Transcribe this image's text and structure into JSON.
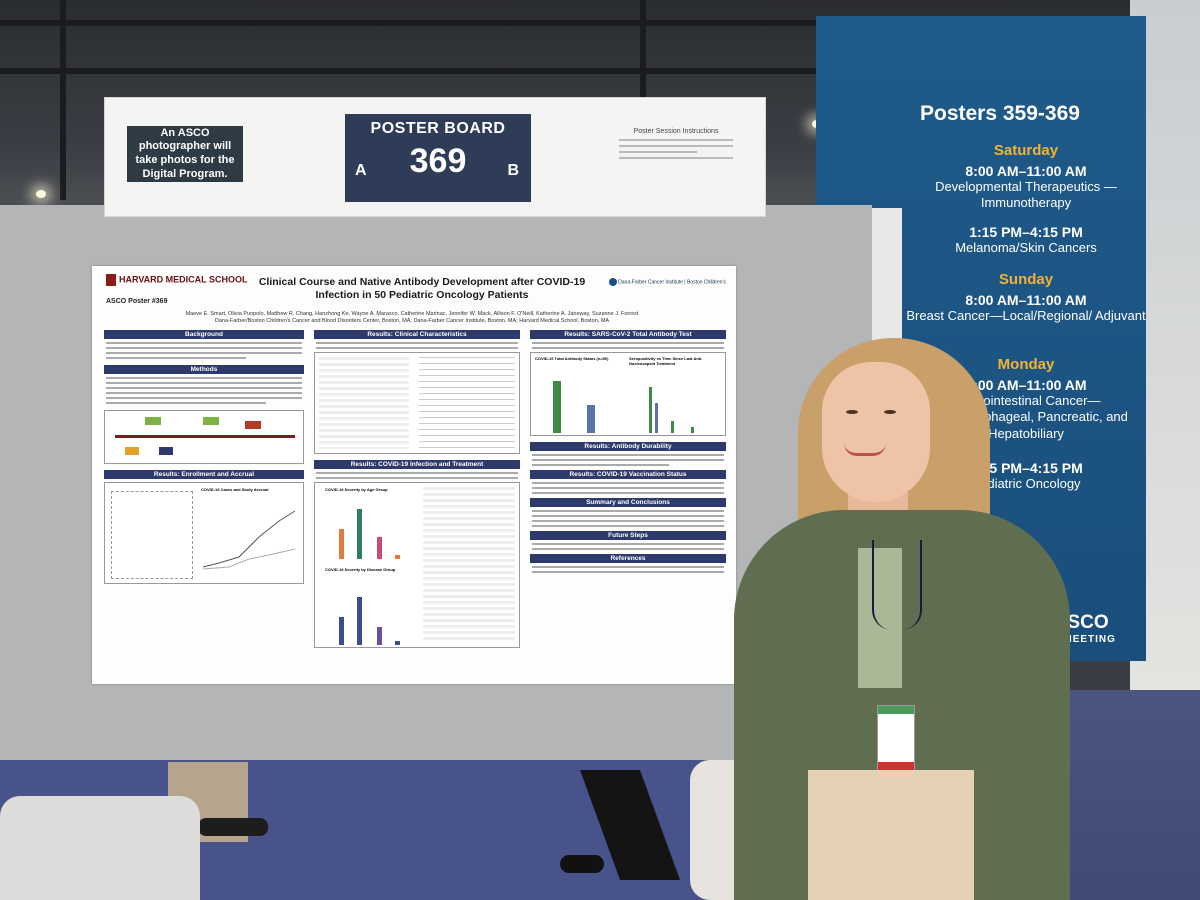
{
  "board": {
    "photo_note": "An ASCO photographer will take photos for the Digital Program.",
    "title": "POSTER BOARD",
    "number": "369",
    "side_a": "A",
    "side_b": "B",
    "instructions_title": "Poster Session Instructions"
  },
  "sign": {
    "title": "Posters 359-369",
    "days": [
      {
        "day": "Saturday",
        "time": "8:00 AM–11:00 AM",
        "topic": "Developmental Therapeutics —Immunotherapy"
      },
      {
        "day": "",
        "time": "1:15 PM–4:15 PM",
        "topic": "Melanoma/Skin Cancers"
      },
      {
        "day": "Sunday",
        "time": "8:00 AM–11:00 AM",
        "topic": "Breast Cancer—Local/Regional/ Adjuvant"
      },
      {
        "day": "Monday",
        "time": "8:00 AM–11:00 AM",
        "topic": "Gastrointestinal Cancer— Gastroesophageal, Pancreatic, and Hepatobiliary"
      },
      {
        "day": "",
        "time": "1:15 PM–4:15 PM",
        "topic": "Pediatric Oncology"
      }
    ],
    "footer": "23 ASCO",
    "footer_sub": "NUAL MEETING"
  },
  "poster": {
    "institution": "HARVARD MEDICAL SCHOOL",
    "poster_id": "ASCO Poster #369",
    "title": "Clinical Course and Native Antibody Development after COVID-19 Infection in 50 Pediatric Oncology Patients",
    "authors": "Maeve E. Smart, Olivia Puopolo, Matthew R. Chang, Hanzhong Ke, Wayne A. Marasco, Catherine Marinac, Jennifer W. Mack, Allison F. O'Neill, Katherine A. Janeway, Suzanne J. Forrest",
    "affiliations": "Dana-Farber/Boston Children's Cancer and Blood Disorders Center, Boston, MA; Dana-Farber Cancer Institute, Boston, MA; Harvard Medical School, Boston, MA",
    "partner_logos": "Dana-Farber Cancer Institute | Boston Children's",
    "sections": {
      "background": "Background",
      "methods": "Methods",
      "enrollment": "Results: Enrollment and Accrual",
      "clinical": "Results: Clinical Characteristics",
      "infection": "Results: COVID-19 Infection and Treatment",
      "antibody_test": "Results: SARS-CoV-2 Total Antibody Test",
      "durability": "Results: Antibody Durability",
      "vaccination": "Results: COVID-19 Vaccination Status",
      "summary": "Summary and Conclusions",
      "future": "Future Steps",
      "references": "References"
    },
    "chart_labels": {
      "severity_age": "COVID-19 Severity by Age Group",
      "severity_disease": "COVID-19 Severity by Disease Group",
      "cases": "COVID-19 Cases and Study Accrual",
      "total_ab": "COVID-19 Total Antibody Status (n=50)",
      "seropositivity": "Seropositivity vs Time Since Last Anti-Nucleocapsid Treatment"
    }
  },
  "colors": {
    "sign_blue": "#1f5b8a",
    "sign_accent": "#f2b233",
    "poster_header": "#2d3a6b",
    "board_blue": "#2f3c58"
  }
}
